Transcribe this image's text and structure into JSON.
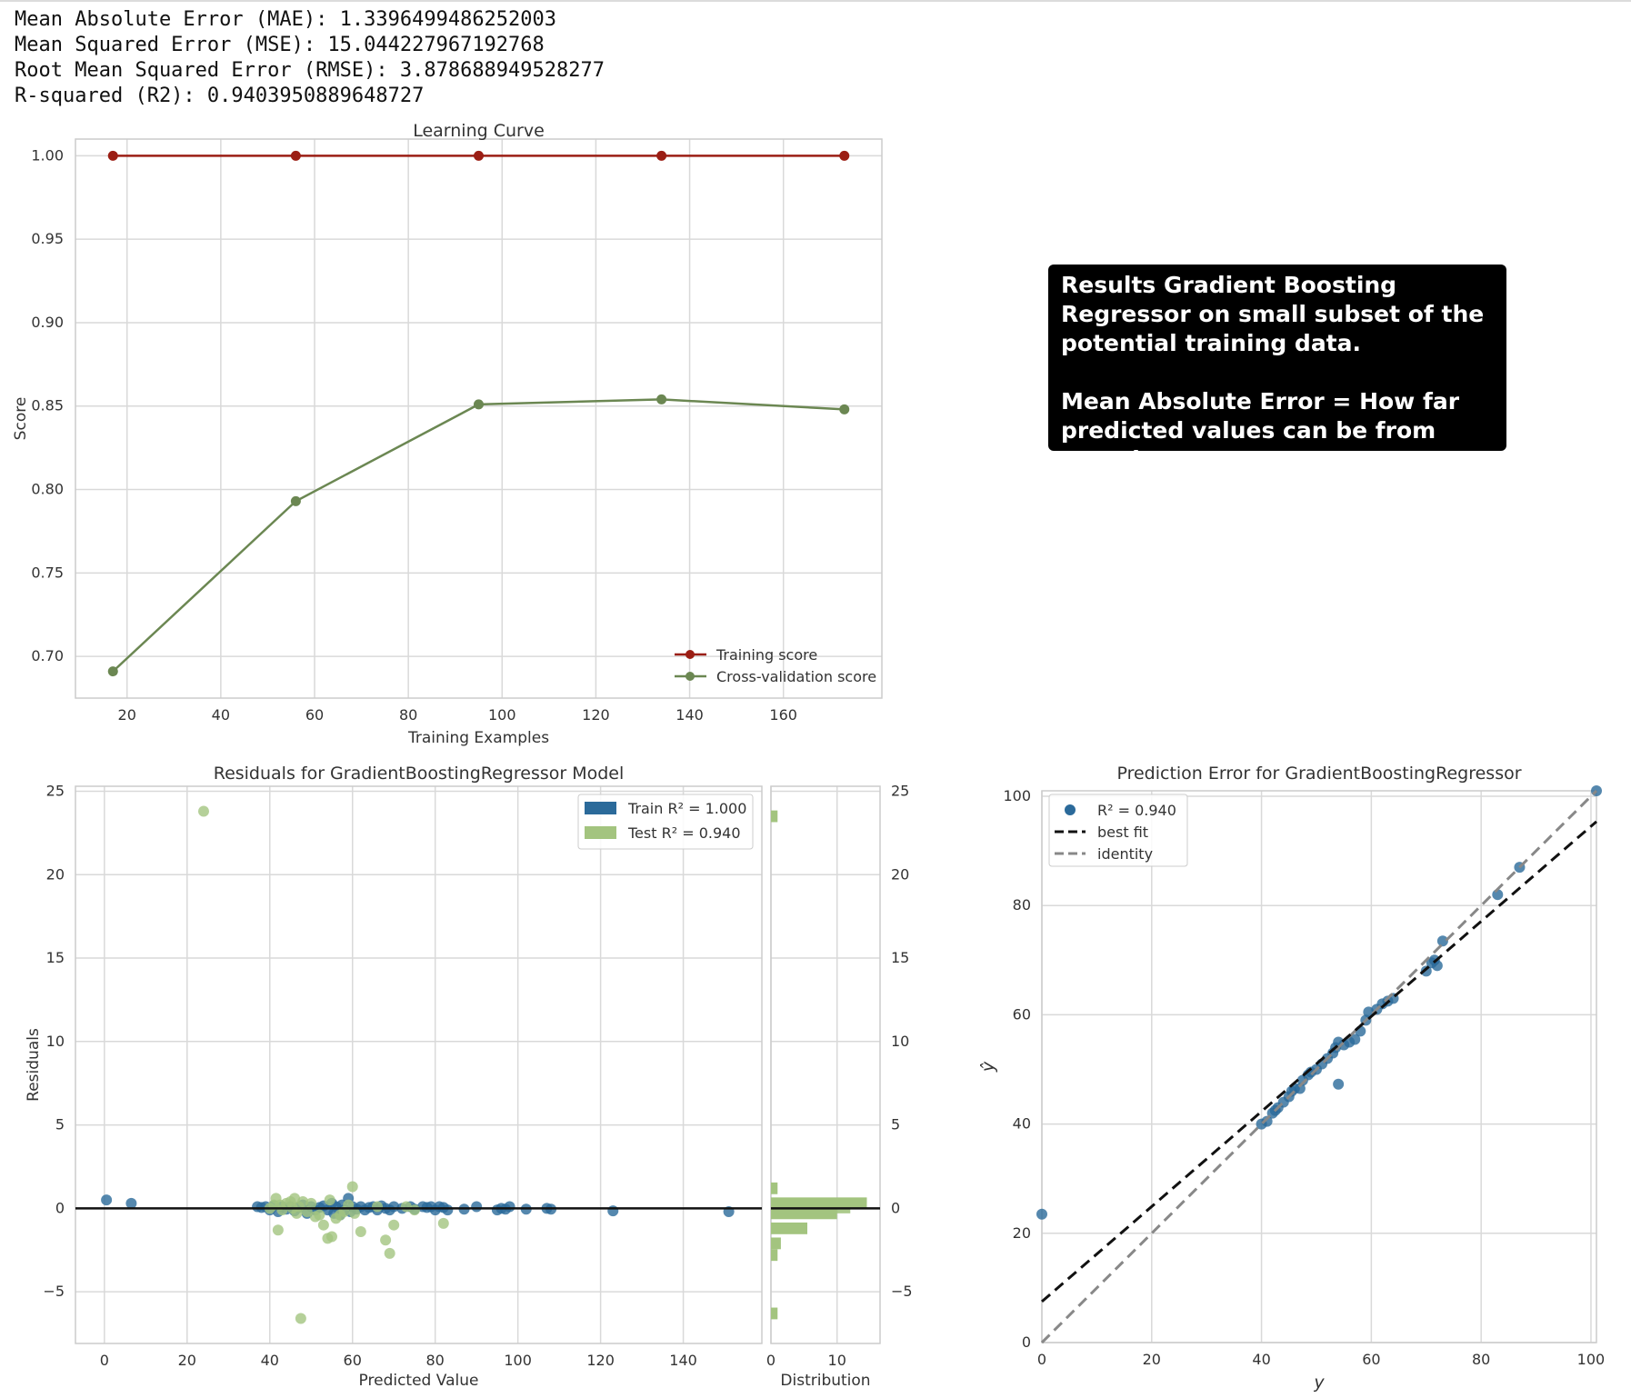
{
  "metrics": [
    "Mean Absolute Error (MAE): 1.3396499486252003",
    "Mean Squared Error (MSE): 15.044227967192768",
    "Root Mean Squared Error (RMSE): 3.878688949528277",
    "R-squared (R2): 0.9403950889648727"
  ],
  "callout": {
    "line1": "Results Gradient Boosting Regressor on small subset of the potential training data.",
    "line2": "Mean Absolute Error = How far predicted values can be from actual."
  },
  "colors": {
    "training": "#9b1e14",
    "cv": "#6b8752",
    "train_dots": "#2b6a9a",
    "test_dots": "#a3c47f",
    "grid": "#d9d9d9",
    "frame": "#cccccc"
  },
  "chart_data": [
    {
      "type": "line",
      "title": "Learning Curve",
      "xlabel": "Training Examples",
      "ylabel": "Score",
      "xlim": [
        9,
        181
      ],
      "ylim": [
        0.675,
        1.01
      ],
      "xticks": [
        20,
        40,
        60,
        80,
        100,
        120,
        140,
        160
      ],
      "yticks": [
        0.7,
        0.75,
        0.8,
        0.85,
        0.9,
        0.95,
        1.0
      ],
      "grid": true,
      "legend": "lower right",
      "x": [
        17,
        56,
        95,
        134,
        173
      ],
      "series": [
        {
          "name": "Training score",
          "values": [
            1.0,
            1.0,
            1.0,
            1.0,
            1.0
          ]
        },
        {
          "name": "Cross-validation score",
          "values": [
            0.691,
            0.793,
            0.851,
            0.854,
            0.848
          ]
        }
      ]
    },
    {
      "type": "scatter",
      "title": "Residuals for GradientBoostingRegressor Model",
      "xlabel": "Predicted Value",
      "ylabel": "Residuals",
      "xlim": [
        -7,
        159
      ],
      "ylim": [
        -8.1,
        25.3
      ],
      "xticks": [
        0,
        20,
        40,
        60,
        80,
        100,
        120,
        140
      ],
      "yticks": [
        -5,
        0,
        5,
        10,
        15,
        20,
        25
      ],
      "grid": true,
      "legend": "upper right",
      "series": [
        {
          "name": "Train",
          "r2_label": "Train R² = 1.000",
          "points": [
            [
              0.5,
              0.5
            ],
            [
              6.5,
              0.3
            ],
            [
              37,
              0.1
            ],
            [
              38,
              0.05
            ],
            [
              39,
              0.1
            ],
            [
              40,
              -0.1
            ],
            [
              41,
              0.15
            ],
            [
              42,
              -0.2
            ],
            [
              43,
              0.1
            ],
            [
              44,
              -0.05
            ],
            [
              45,
              0.1
            ],
            [
              46,
              -0.15
            ],
            [
              47,
              0.05
            ],
            [
              48,
              0.2
            ],
            [
              49,
              -0.3
            ],
            [
              50,
              0.1
            ],
            [
              51,
              -0.1
            ],
            [
              52,
              0.05
            ],
            [
              53,
              0.15
            ],
            [
              54,
              -0.1
            ],
            [
              55,
              0.3
            ],
            [
              55.5,
              -0.3
            ],
            [
              56,
              0.1
            ],
            [
              57,
              -0.4
            ],
            [
              57.5,
              0.2
            ],
            [
              58,
              -0.1
            ],
            [
              59,
              0.6
            ],
            [
              59.5,
              -0.2
            ],
            [
              60,
              0.1
            ],
            [
              61,
              -0.05
            ],
            [
              62,
              0.1
            ],
            [
              63,
              -0.1
            ],
            [
              64,
              0.05
            ],
            [
              65,
              0.1
            ],
            [
              66,
              -0.1
            ],
            [
              67,
              0.15
            ],
            [
              68,
              0.0
            ],
            [
              69,
              -0.1
            ],
            [
              70,
              0.1
            ],
            [
              72,
              0.0
            ],
            [
              74,
              0.1
            ],
            [
              75,
              -0.05
            ],
            [
              77,
              0.1
            ],
            [
              78,
              0.05
            ],
            [
              79,
              0.1
            ],
            [
              80,
              -0.1
            ],
            [
              81,
              0.1
            ],
            [
              82,
              0.05
            ],
            [
              83,
              -0.1
            ],
            [
              87,
              -0.05
            ],
            [
              90,
              0.1
            ],
            [
              95,
              -0.1
            ],
            [
              96,
              0.0
            ],
            [
              97,
              -0.05
            ],
            [
              98,
              0.1
            ],
            [
              102,
              -0.05
            ],
            [
              107,
              0.0
            ],
            [
              108,
              -0.05
            ],
            [
              123,
              -0.15
            ],
            [
              151,
              -0.2
            ]
          ]
        },
        {
          "name": "Test",
          "r2_label": "Test R² = 0.940",
          "points": [
            [
              24,
              23.8
            ],
            [
              40,
              0.0
            ],
            [
              41,
              0.2
            ],
            [
              41.5,
              0.6
            ],
            [
              42,
              -1.3
            ],
            [
              42.5,
              0.2
            ],
            [
              43,
              -0.1
            ],
            [
              44,
              0.3
            ],
            [
              45,
              0.4
            ],
            [
              45.5,
              0.0
            ],
            [
              46,
              0.6
            ],
            [
              46.5,
              -0.3
            ],
            [
              47,
              0.1
            ],
            [
              47.5,
              -6.6
            ],
            [
              48,
              0.4
            ],
            [
              49,
              -0.2
            ],
            [
              50,
              0.3
            ],
            [
              51,
              -0.5
            ],
            [
              52,
              -0.4
            ],
            [
              53,
              -1.0
            ],
            [
              54,
              -1.8
            ],
            [
              54.5,
              0.5
            ],
            [
              55,
              -1.7
            ],
            [
              56,
              -0.6
            ],
            [
              57,
              -0.4
            ],
            [
              58,
              -0.2
            ],
            [
              59,
              0.2
            ],
            [
              60,
              1.3
            ],
            [
              60.5,
              -0.3
            ],
            [
              62,
              -1.4
            ],
            [
              66,
              0.1
            ],
            [
              68,
              -1.9
            ],
            [
              69,
              -2.7
            ],
            [
              70,
              -1.0
            ],
            [
              73,
              0.1
            ],
            [
              75,
              -0.1
            ],
            [
              82,
              -0.9
            ]
          ]
        }
      ]
    },
    {
      "type": "bar",
      "title": "",
      "xlabel": "Distribution",
      "xlim": [
        0,
        16.5
      ],
      "xticks": [
        0,
        10
      ],
      "ylim": [
        -8.1,
        25.3
      ],
      "yticks": [
        -5,
        0,
        5,
        10,
        15,
        20,
        25
      ],
      "bins": [
        {
          "center": 23.5,
          "train": 0,
          "test": 1
        },
        {
          "center": 1.2,
          "train": 0,
          "test": 1
        },
        {
          "center": 0.3,
          "train": 14.5,
          "test": 14.5
        },
        {
          "center": -0.3,
          "train": 12,
          "test": 10
        },
        {
          "center": -1.2,
          "train": 0,
          "test": 5.5
        },
        {
          "center": -2.1,
          "train": 0,
          "test": 1.5
        },
        {
          "center": -2.8,
          "train": 0,
          "test": 1
        },
        {
          "center": -6.3,
          "train": 0,
          "test": 1
        }
      ]
    },
    {
      "type": "scatter",
      "title": "Prediction Error for GradientBoostingRegressor",
      "xlabel": "y",
      "ylabel": "ŷ",
      "xlim": [
        0,
        101
      ],
      "ylim": [
        0,
        101
      ],
      "xticks": [
        0,
        20,
        40,
        60,
        80,
        100
      ],
      "yticks": [
        0,
        20,
        40,
        60,
        80,
        100
      ],
      "grid": true,
      "legend": "upper left",
      "r2_label": "R² = 0.940",
      "best_fit": {
        "label": "best fit",
        "intercept": 7.5,
        "slope": 0.87
      },
      "identity": {
        "label": "identity"
      },
      "points": [
        [
          0,
          23.5
        ],
        [
          40,
          40
        ],
        [
          41,
          40.5
        ],
        [
          42,
          42
        ],
        [
          42.5,
          42.5
        ],
        [
          43,
          43
        ],
        [
          44,
          44
        ],
        [
          45,
          45
        ],
        [
          45.5,
          46
        ],
        [
          46,
          46.5
        ],
        [
          47,
          46.5
        ],
        [
          47.5,
          48
        ],
        [
          48.5,
          49
        ],
        [
          49,
          49.5
        ],
        [
          50,
          50
        ],
        [
          51,
          51
        ],
        [
          52,
          52
        ],
        [
          53,
          53
        ],
        [
          53.5,
          54
        ],
        [
          54,
          55
        ],
        [
          54,
          47.3
        ],
        [
          55,
          54.5
        ],
        [
          56,
          55
        ],
        [
          57,
          55.5
        ],
        [
          58,
          57
        ],
        [
          59,
          59
        ],
        [
          59.5,
          60.5
        ],
        [
          61,
          61
        ],
        [
          62,
          62
        ],
        [
          63,
          62.5
        ],
        [
          64,
          63
        ],
        [
          70,
          68
        ],
        [
          71,
          69.5
        ],
        [
          71.5,
          70
        ],
        [
          72,
          69
        ],
        [
          73,
          73.5
        ],
        [
          83,
          82
        ],
        [
          87,
          87
        ],
        [
          101,
          101
        ]
      ]
    }
  ]
}
